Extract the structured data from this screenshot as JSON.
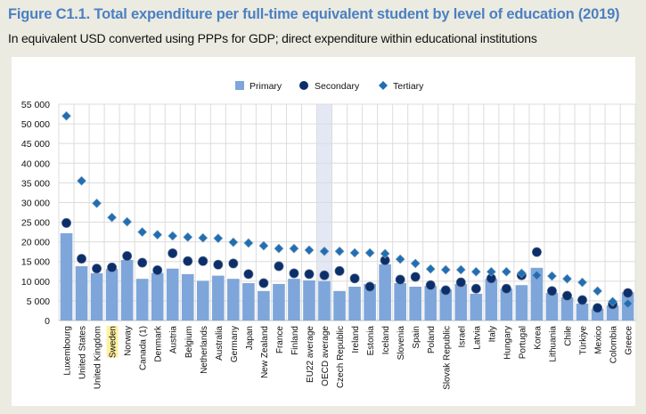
{
  "title": "Figure C1.1. Total expenditure per full-time equivalent student by level of education (2019)",
  "subtitle": "In equivalent USD converted using PPPs for GDP; direct expenditure within educational institutions",
  "colors": {
    "primary": "#7ea6da",
    "secondary": "#0c2f6b",
    "tertiary": "#1f6fb5",
    "highlight_label": "#fdf0a0",
    "highlight_band": "#e3e8f4",
    "title": "#4b80c3"
  },
  "chart_data": {
    "type": "bar",
    "title": "",
    "xlabel": "",
    "ylabel": "",
    "ylim": [
      0,
      55000
    ],
    "yticks": [
      0,
      5000,
      10000,
      15000,
      20000,
      25000,
      30000,
      35000,
      40000,
      45000,
      50000,
      55000
    ],
    "ytick_labels": [
      "0",
      "5 000",
      "10 000",
      "15 000",
      "20 000",
      "25 000",
      "30 000",
      "35 000",
      "40 000",
      "45 000",
      "50 000",
      "55 000"
    ],
    "grid": true,
    "legend_position": "top-center",
    "highlighted_label": "Sweden",
    "highlighted_band": "OECD average",
    "categories": [
      "Luxembourg",
      "United States",
      "United Kingdom",
      "Sweden",
      "Norway",
      "Canada (1)",
      "Denmark",
      "Austria",
      "Belgium",
      "Netherlands",
      "Australia",
      "Germany",
      "Japan",
      "New Zealand",
      "France",
      "Finland",
      "EU22 average",
      "OECD average",
      "Czech Republic",
      "Ireland",
      "Estonia",
      "Iceland",
      "Slovenia",
      "Spain",
      "Poland",
      "Slovak Republic",
      "Israel",
      "Latvia",
      "Italy",
      "Hungary",
      "Portugal",
      "Korea",
      "Lithuania",
      "Chile",
      "Türkiye",
      "Mexico",
      "Colombia",
      "Greece"
    ],
    "series": [
      {
        "name": "Primary",
        "marker": "bar",
        "values": [
          22200,
          13800,
          12000,
          13100,
          15400,
          10600,
          12100,
          13200,
          11800,
          10100,
          11400,
          10600,
          9500,
          7500,
          9300,
          10600,
          10200,
          10000,
          7500,
          8600,
          9300,
          14300,
          9500,
          8600,
          8800,
          7900,
          9300,
          6800,
          10600,
          8100,
          9000,
          13400,
          7000,
          5900,
          4300,
          3000,
          3800,
          7200
        ]
      },
      {
        "name": "Secondary",
        "marker": "circle",
        "values": [
          24800,
          15700,
          13200,
          13500,
          16400,
          14700,
          12800,
          17100,
          15100,
          15100,
          14200,
          14500,
          11800,
          9500,
          13800,
          12000,
          11800,
          11500,
          12600,
          10700,
          8600,
          15300,
          10400,
          11100,
          9000,
          7700,
          9700,
          8100,
          10700,
          8100,
          11500,
          17400,
          7500,
          6300,
          5200,
          3200,
          4100,
          7000
        ]
      },
      {
        "name": "Tertiary",
        "marker": "diamond",
        "values": [
          52000,
          35500,
          29800,
          26200,
          25100,
          22500,
          21800,
          21500,
          21200,
          21000,
          20900,
          19900,
          19700,
          19000,
          18300,
          18300,
          17900,
          17600,
          17600,
          17200,
          17200,
          17000,
          15600,
          14500,
          13100,
          12900,
          12900,
          12400,
          12400,
          12400,
          12000,
          11500,
          11300,
          10600,
          9700,
          7500,
          4800,
          4300
        ]
      }
    ]
  }
}
